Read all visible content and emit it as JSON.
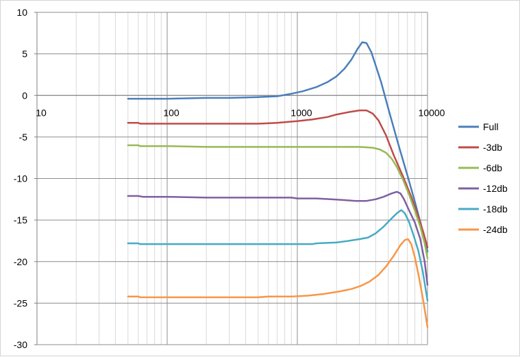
{
  "chart_data": {
    "type": "line",
    "x_scale": "log",
    "xlim": [
      10,
      10000
    ],
    "ylim": [
      -30,
      10
    ],
    "y_ticks": [
      10,
      5,
      0,
      -5,
      -10,
      -15,
      -20,
      -25,
      -30
    ],
    "y_tick_labels": [
      "10",
      "5",
      "0",
      "-5",
      "-10",
      "-15",
      "-20",
      "-25",
      "-30"
    ],
    "x_ticks": [
      10,
      100,
      1000,
      10000
    ],
    "x_tick_labels": [
      "10",
      "100",
      "1000",
      "10000"
    ],
    "x_axis_crosses_at": 0,
    "grid": true,
    "legend_position": "right",
    "series": [
      {
        "name": "Full",
        "color": "#4a7ebb",
        "points": [
          [
            50,
            -0.4
          ],
          [
            100,
            -0.4
          ],
          [
            200,
            -0.3
          ],
          [
            300,
            -0.3
          ],
          [
            500,
            -0.2
          ],
          [
            700,
            -0.1
          ],
          [
            900,
            0.2
          ],
          [
            1100,
            0.5
          ],
          [
            1400,
            1.0
          ],
          [
            1700,
            1.6
          ],
          [
            2000,
            2.3
          ],
          [
            2300,
            3.2
          ],
          [
            2600,
            4.3
          ],
          [
            2900,
            5.6
          ],
          [
            3150,
            6.4
          ],
          [
            3400,
            6.3
          ],
          [
            3700,
            5.2
          ],
          [
            4000,
            3.6
          ],
          [
            4400,
            1.6
          ],
          [
            5000,
            -1.6
          ],
          [
            6000,
            -6.0
          ],
          [
            7000,
            -9.6
          ],
          [
            8000,
            -12.8
          ],
          [
            9000,
            -15.8
          ],
          [
            10000,
            -18.8
          ]
        ]
      },
      {
        "name": "-3db",
        "color": "#be4b48",
        "points": [
          [
            50,
            -3.3
          ],
          [
            60,
            -3.3
          ],
          [
            62,
            -3.4
          ],
          [
            100,
            -3.4
          ],
          [
            200,
            -3.4
          ],
          [
            300,
            -3.4
          ],
          [
            500,
            -3.4
          ],
          [
            700,
            -3.3
          ],
          [
            1000,
            -3.1
          ],
          [
            1300,
            -2.9
          ],
          [
            1700,
            -2.6
          ],
          [
            2000,
            -2.3
          ],
          [
            2500,
            -2.0
          ],
          [
            3000,
            -1.8
          ],
          [
            3400,
            -1.8
          ],
          [
            3800,
            -2.2
          ],
          [
            4200,
            -3.0
          ],
          [
            4800,
            -4.8
          ],
          [
            5500,
            -7.2
          ],
          [
            6500,
            -9.8
          ],
          [
            7500,
            -12.2
          ],
          [
            8500,
            -14.6
          ],
          [
            9300,
            -16.5
          ],
          [
            10000,
            -18.3
          ]
        ]
      },
      {
        "name": "-6db",
        "color": "#98b954",
        "points": [
          [
            50,
            -6.0
          ],
          [
            60,
            -6.0
          ],
          [
            62,
            -6.1
          ],
          [
            100,
            -6.1
          ],
          [
            200,
            -6.2
          ],
          [
            500,
            -6.2
          ],
          [
            1000,
            -6.2
          ],
          [
            2000,
            -6.2
          ],
          [
            3000,
            -6.2
          ],
          [
            3800,
            -6.3
          ],
          [
            4300,
            -6.5
          ],
          [
            4800,
            -6.9
          ],
          [
            5300,
            -7.6
          ],
          [
            5800,
            -8.6
          ],
          [
            6500,
            -10.2
          ],
          [
            7200,
            -11.9
          ],
          [
            8000,
            -13.9
          ],
          [
            8800,
            -15.8
          ],
          [
            9500,
            -17.8
          ],
          [
            10000,
            -19.6
          ]
        ]
      },
      {
        "name": "-12db",
        "color": "#7d60a0",
        "points": [
          [
            50,
            -12.1
          ],
          [
            60,
            -12.1
          ],
          [
            65,
            -12.2
          ],
          [
            100,
            -12.2
          ],
          [
            200,
            -12.3
          ],
          [
            500,
            -12.3
          ],
          [
            900,
            -12.3
          ],
          [
            1000,
            -12.4
          ],
          [
            1400,
            -12.4
          ],
          [
            1800,
            -12.5
          ],
          [
            2300,
            -12.6
          ],
          [
            2800,
            -12.7
          ],
          [
            3400,
            -12.7
          ],
          [
            4000,
            -12.5
          ],
          [
            4600,
            -12.2
          ],
          [
            5300,
            -11.8
          ],
          [
            5800,
            -11.6
          ],
          [
            6200,
            -11.8
          ],
          [
            6600,
            -12.5
          ],
          [
            7200,
            -13.8
          ],
          [
            8000,
            -15.3
          ],
          [
            8800,
            -17.3
          ],
          [
            9500,
            -20.0
          ],
          [
            10000,
            -22.8
          ]
        ]
      },
      {
        "name": "-18db",
        "color": "#46aac5",
        "points": [
          [
            50,
            -17.8
          ],
          [
            60,
            -17.8
          ],
          [
            62,
            -17.9
          ],
          [
            100,
            -17.9
          ],
          [
            200,
            -17.9
          ],
          [
            500,
            -17.9
          ],
          [
            1000,
            -17.9
          ],
          [
            1300,
            -17.9
          ],
          [
            1400,
            -17.8
          ],
          [
            2000,
            -17.7
          ],
          [
            2500,
            -17.5
          ],
          [
            3000,
            -17.3
          ],
          [
            3500,
            -17.1
          ],
          [
            4000,
            -16.6
          ],
          [
            4600,
            -15.8
          ],
          [
            5300,
            -14.8
          ],
          [
            5900,
            -14.1
          ],
          [
            6300,
            -13.8
          ],
          [
            6700,
            -14.2
          ],
          [
            7200,
            -15.2
          ],
          [
            7800,
            -16.8
          ],
          [
            8500,
            -18.7
          ],
          [
            9200,
            -21.2
          ],
          [
            10000,
            -24.7
          ]
        ]
      },
      {
        "name": "-24db",
        "color": "#f79646",
        "points": [
          [
            50,
            -24.2
          ],
          [
            60,
            -24.2
          ],
          [
            62,
            -24.3
          ],
          [
            100,
            -24.3
          ],
          [
            200,
            -24.3
          ],
          [
            500,
            -24.3
          ],
          [
            600,
            -24.2
          ],
          [
            900,
            -24.2
          ],
          [
            1200,
            -24.1
          ],
          [
            1600,
            -23.9
          ],
          [
            2100,
            -23.6
          ],
          [
            2600,
            -23.3
          ],
          [
            3100,
            -22.9
          ],
          [
            3600,
            -22.4
          ],
          [
            4200,
            -21.6
          ],
          [
            4800,
            -20.6
          ],
          [
            5500,
            -19.3
          ],
          [
            6200,
            -18.0
          ],
          [
            6700,
            -17.4
          ],
          [
            7100,
            -17.3
          ],
          [
            7500,
            -17.9
          ],
          [
            8000,
            -19.5
          ],
          [
            8600,
            -21.9
          ],
          [
            9300,
            -24.8
          ],
          [
            10000,
            -27.9
          ]
        ]
      }
    ]
  }
}
